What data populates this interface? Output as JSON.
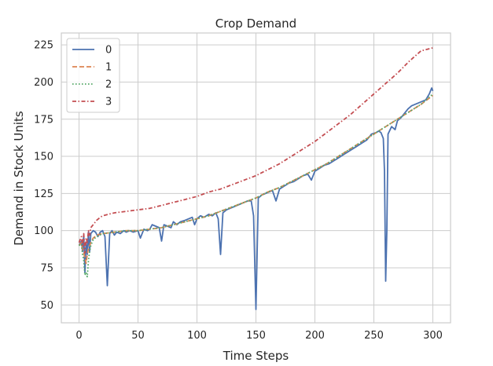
{
  "chart_data": {
    "type": "line",
    "title": "Crop Demand",
    "xlabel": "Time Steps",
    "ylabel": "Demand in Stock Units",
    "xlim": [
      -15,
      315
    ],
    "ylim": [
      38,
      233
    ],
    "xticks": [
      "0",
      "50",
      "100",
      "150",
      "200",
      "250",
      "300"
    ],
    "yticks": [
      "50",
      "75",
      "100",
      "125",
      "150",
      "175",
      "200",
      "225"
    ],
    "grid": true,
    "legend_position": "top-left",
    "series": [
      {
        "name": "0",
        "color": "#4c72b0",
        "style": "solid",
        "points": [
          [
            0,
            90
          ],
          [
            2,
            93
          ],
          [
            3,
            86
          ],
          [
            4,
            97
          ],
          [
            5,
            72
          ],
          [
            6,
            92
          ],
          [
            7,
            84
          ],
          [
            8,
            99
          ],
          [
            9,
            86
          ],
          [
            10,
            98
          ],
          [
            12,
            100
          ],
          [
            14,
            99
          ],
          [
            16,
            96
          ],
          [
            18,
            99
          ],
          [
            20,
            100
          ],
          [
            22,
            96
          ],
          [
            24,
            63
          ],
          [
            26,
            98
          ],
          [
            28,
            100
          ],
          [
            30,
            97
          ],
          [
            32,
            99
          ],
          [
            35,
            98
          ],
          [
            38,
            100
          ],
          [
            40,
            99
          ],
          [
            43,
            100
          ],
          [
            46,
            99
          ],
          [
            50,
            100
          ],
          [
            52,
            95
          ],
          [
            55,
            101
          ],
          [
            58,
            100
          ],
          [
            60,
            101
          ],
          [
            62,
            104
          ],
          [
            65,
            103
          ],
          [
            68,
            102
          ],
          [
            70,
            93
          ],
          [
            72,
            104
          ],
          [
            75,
            103
          ],
          [
            78,
            102
          ],
          [
            80,
            106
          ],
          [
            83,
            104
          ],
          [
            86,
            106
          ],
          [
            90,
            107
          ],
          [
            93,
            108
          ],
          [
            96,
            109
          ],
          [
            98,
            104
          ],
          [
            100,
            108
          ],
          [
            103,
            110
          ],
          [
            106,
            109
          ],
          [
            110,
            111
          ],
          [
            113,
            110
          ],
          [
            116,
            112
          ],
          [
            118,
            108
          ],
          [
            120,
            84
          ],
          [
            122,
            112
          ],
          [
            125,
            114
          ],
          [
            128,
            115
          ],
          [
            131,
            116
          ],
          [
            134,
            117
          ],
          [
            137,
            118
          ],
          [
            140,
            119
          ],
          [
            143,
            120
          ],
          [
            146,
            120
          ],
          [
            148,
            110
          ],
          [
            150,
            47
          ],
          [
            152,
            122
          ],
          [
            155,
            124
          ],
          [
            158,
            125
          ],
          [
            161,
            126
          ],
          [
            164,
            127
          ],
          [
            167,
            120
          ],
          [
            170,
            128
          ],
          [
            174,
            130
          ],
          [
            178,
            132
          ],
          [
            182,
            133
          ],
          [
            186,
            135
          ],
          [
            190,
            137
          ],
          [
            194,
            138
          ],
          [
            197,
            134
          ],
          [
            200,
            140
          ],
          [
            204,
            142
          ],
          [
            208,
            144
          ],
          [
            212,
            145
          ],
          [
            216,
            147
          ],
          [
            220,
            149
          ],
          [
            224,
            151
          ],
          [
            228,
            153
          ],
          [
            232,
            155
          ],
          [
            236,
            157
          ],
          [
            240,
            159
          ],
          [
            244,
            161
          ],
          [
            248,
            165
          ],
          [
            252,
            166
          ],
          [
            254,
            167
          ],
          [
            256,
            166
          ],
          [
            258,
            162
          ],
          [
            259,
            140
          ],
          [
            260,
            66
          ],
          [
            261,
            100
          ],
          [
            262,
            165
          ],
          [
            265,
            170
          ],
          [
            268,
            168
          ],
          [
            270,
            174
          ],
          [
            273,
            176
          ],
          [
            276,
            179
          ],
          [
            279,
            182
          ],
          [
            282,
            184
          ],
          [
            285,
            185
          ],
          [
            288,
            186
          ],
          [
            291,
            187
          ],
          [
            294,
            188
          ],
          [
            297,
            192
          ],
          [
            299,
            196
          ],
          [
            300,
            194
          ]
        ]
      },
      {
        "name": "1",
        "color": "#dd8452",
        "style": "dashed",
        "points": [
          [
            0,
            90
          ],
          [
            2,
            92
          ],
          [
            3,
            88
          ],
          [
            4,
            85
          ],
          [
            5,
            82
          ],
          [
            6,
            78
          ],
          [
            7,
            84
          ],
          [
            8,
            88
          ],
          [
            10,
            92
          ],
          [
            12,
            95
          ],
          [
            15,
            97
          ],
          [
            20,
            98
          ],
          [
            30,
            99
          ],
          [
            40,
            100
          ],
          [
            50,
            100
          ],
          [
            60,
            101
          ],
          [
            70,
            102
          ],
          [
            80,
            104
          ],
          [
            90,
            106
          ],
          [
            100,
            108
          ],
          [
            110,
            110
          ],
          [
            120,
            113
          ],
          [
            130,
            116
          ],
          [
            140,
            119
          ],
          [
            150,
            122
          ],
          [
            160,
            126
          ],
          [
            170,
            129
          ],
          [
            180,
            133
          ],
          [
            190,
            137
          ],
          [
            200,
            141
          ],
          [
            210,
            145
          ],
          [
            220,
            150
          ],
          [
            230,
            155
          ],
          [
            240,
            160
          ],
          [
            250,
            165
          ],
          [
            260,
            170
          ],
          [
            270,
            175
          ],
          [
            280,
            180
          ],
          [
            290,
            185
          ],
          [
            300,
            191
          ]
        ]
      },
      {
        "name": "2",
        "color": "#55a868",
        "style": "dotted",
        "points": [
          [
            0,
            90
          ],
          [
            2,
            91
          ],
          [
            3,
            84
          ],
          [
            4,
            80
          ],
          [
            5,
            70
          ],
          [
            6,
            72
          ],
          [
            7,
            69
          ],
          [
            8,
            80
          ],
          [
            9,
            86
          ],
          [
            10,
            90
          ],
          [
            12,
            94
          ],
          [
            15,
            96
          ],
          [
            20,
            98
          ],
          [
            30,
            99
          ],
          [
            40,
            100
          ],
          [
            50,
            100
          ],
          [
            60,
            101
          ],
          [
            70,
            102
          ],
          [
            80,
            104
          ],
          [
            90,
            106
          ],
          [
            100,
            108
          ],
          [
            110,
            110
          ],
          [
            120,
            113
          ],
          [
            130,
            116
          ],
          [
            140,
            119
          ],
          [
            150,
            122
          ],
          [
            160,
            126
          ],
          [
            170,
            129
          ],
          [
            180,
            133
          ],
          [
            190,
            137
          ],
          [
            200,
            141
          ],
          [
            210,
            145
          ],
          [
            220,
            150
          ],
          [
            230,
            155
          ],
          [
            240,
            160
          ],
          [
            250,
            165
          ],
          [
            260,
            170
          ],
          [
            270,
            175
          ],
          [
            280,
            180
          ],
          [
            290,
            185
          ],
          [
            300,
            192
          ]
        ]
      },
      {
        "name": "3",
        "color": "#c44e52",
        "style": "dashdot",
        "points": [
          [
            0,
            92
          ],
          [
            2,
            96
          ],
          [
            3,
            90
          ],
          [
            4,
            98
          ],
          [
            5,
            85
          ],
          [
            6,
            95
          ],
          [
            7,
            92
          ],
          [
            8,
            100
          ],
          [
            9,
            97
          ],
          [
            10,
            102
          ],
          [
            12,
            104
          ],
          [
            15,
            107
          ],
          [
            18,
            109
          ],
          [
            20,
            110
          ],
          [
            25,
            111
          ],
          [
            30,
            112
          ],
          [
            40,
            113
          ],
          [
            50,
            114
          ],
          [
            60,
            115
          ],
          [
            70,
            117
          ],
          [
            80,
            119
          ],
          [
            90,
            121
          ],
          [
            100,
            123
          ],
          [
            110,
            126
          ],
          [
            120,
            128
          ],
          [
            130,
            131
          ],
          [
            140,
            134
          ],
          [
            150,
            137
          ],
          [
            160,
            141
          ],
          [
            170,
            145
          ],
          [
            180,
            150
          ],
          [
            190,
            155
          ],
          [
            200,
            160
          ],
          [
            210,
            166
          ],
          [
            220,
            172
          ],
          [
            230,
            178
          ],
          [
            240,
            185
          ],
          [
            250,
            192
          ],
          [
            260,
            199
          ],
          [
            270,
            206
          ],
          [
            280,
            214
          ],
          [
            290,
            221
          ],
          [
            300,
            223
          ]
        ]
      }
    ]
  }
}
